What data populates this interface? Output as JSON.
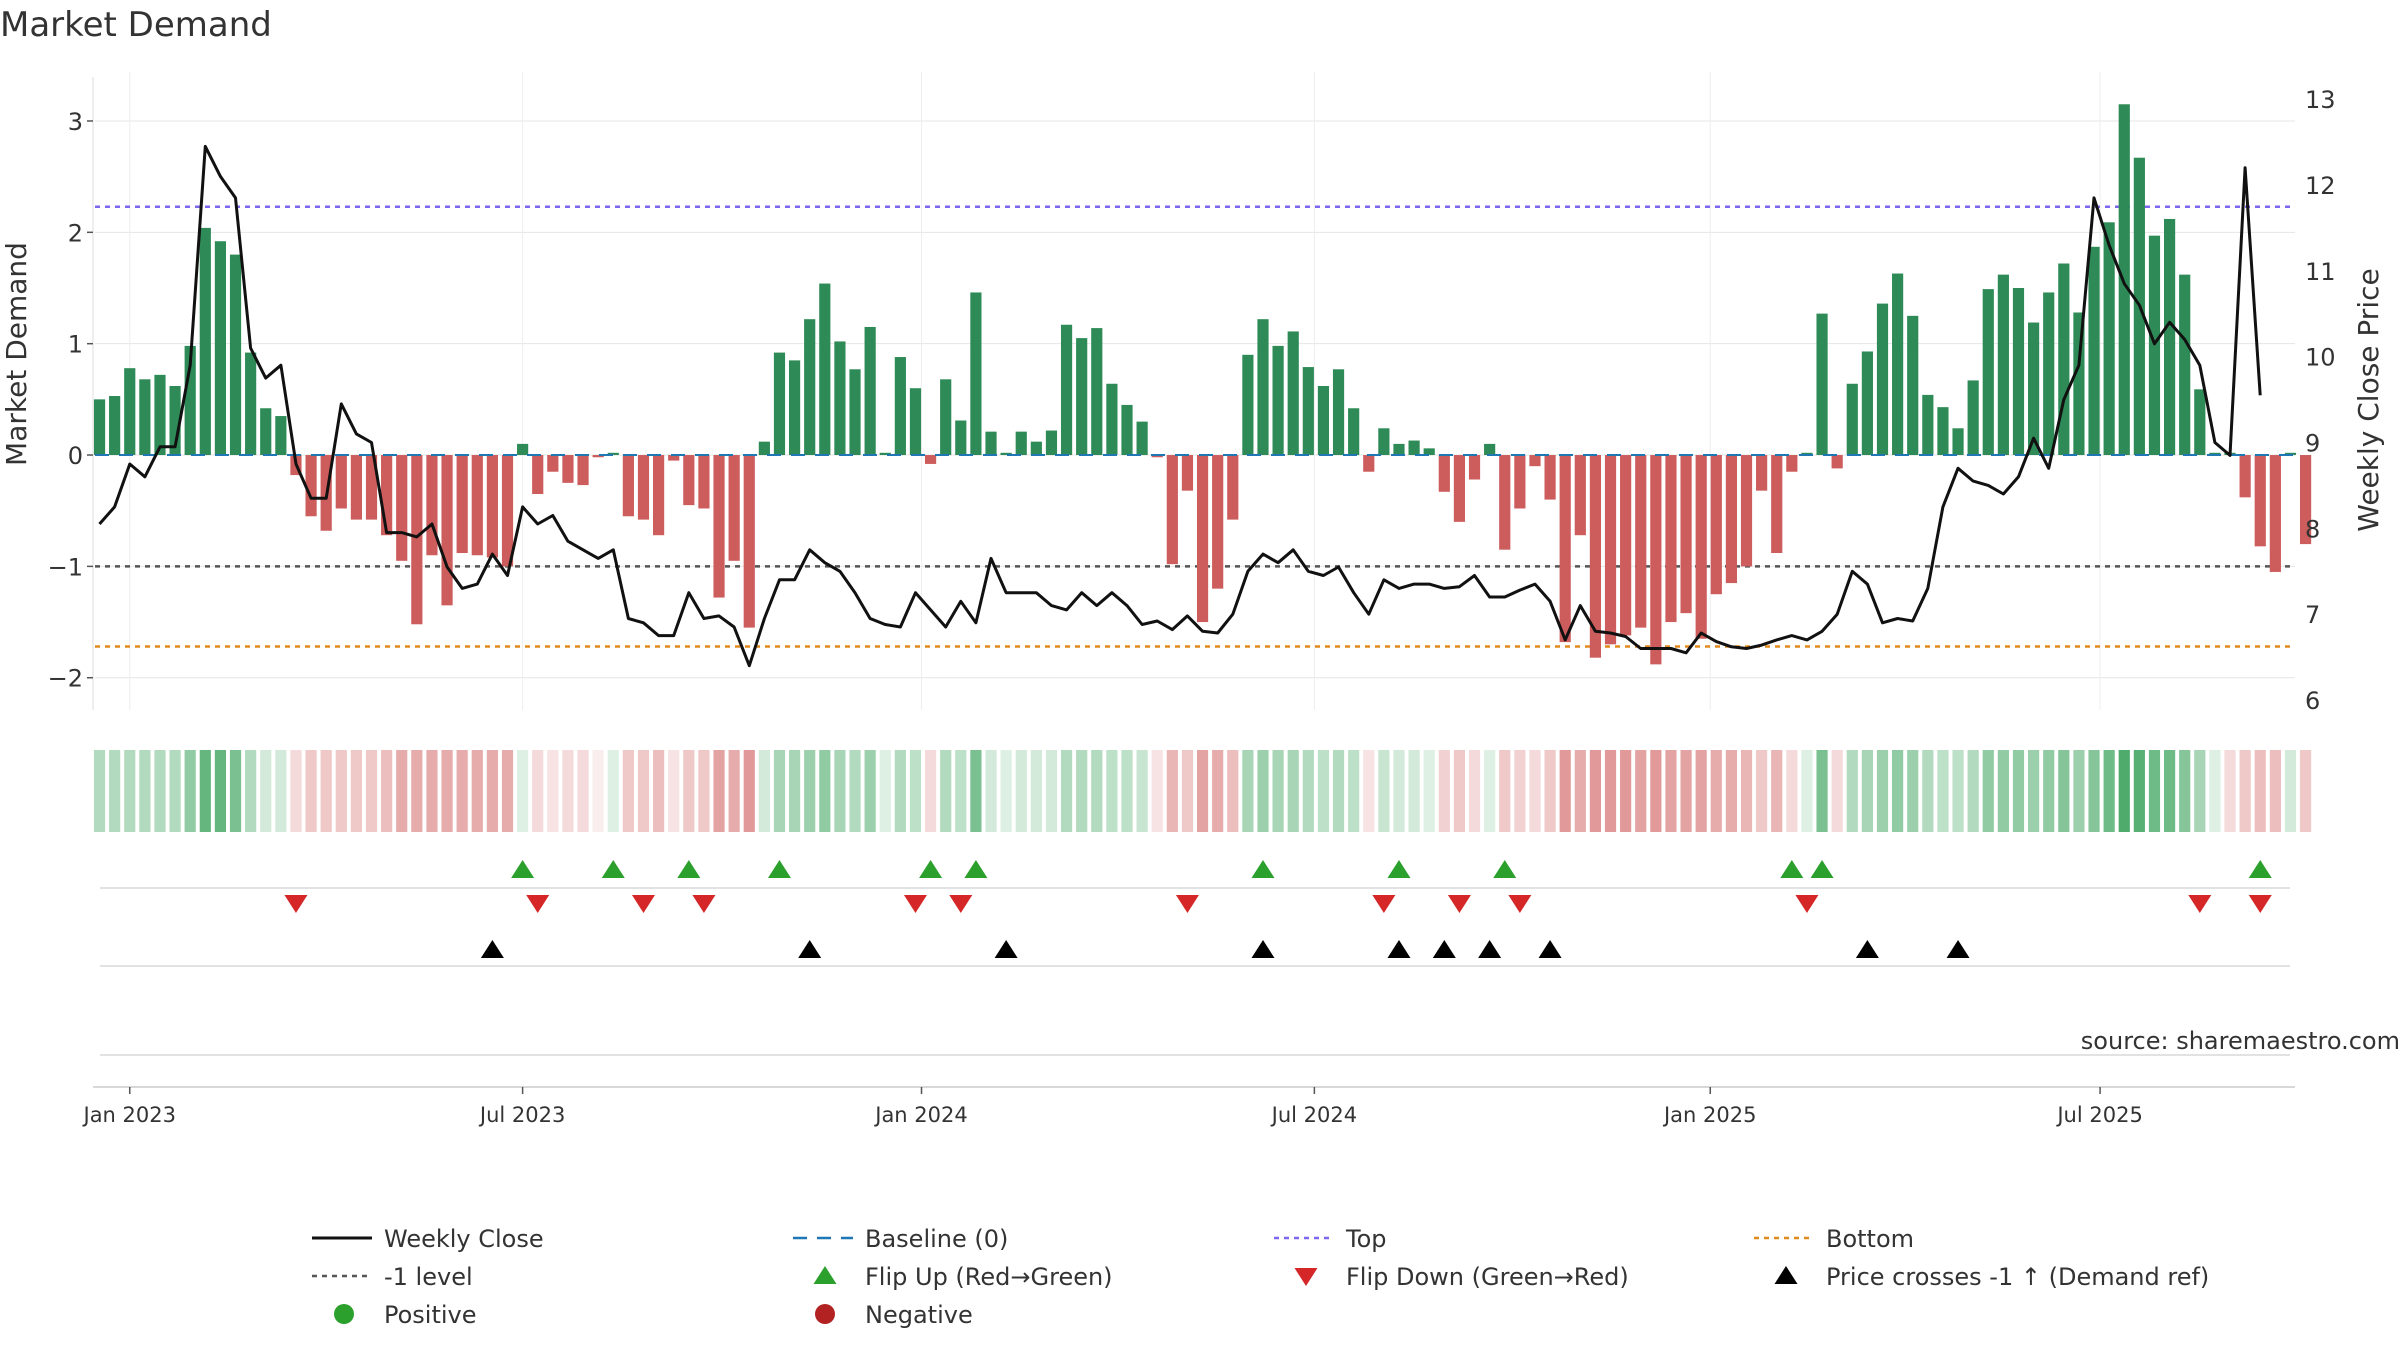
{
  "chart_data": {
    "type": "bar+line",
    "title": "Market Demand",
    "ylabel": "Market Demand",
    "y2label": "Weekly Close Price",
    "ylim": [
      -2.2,
      3.35
    ],
    "y2lim": [
      6.0,
      13.2
    ],
    "yticks": [
      -2,
      -1,
      0,
      1,
      2,
      3
    ],
    "ytick_labels": [
      "−2",
      "−1",
      "0",
      "1",
      "2",
      "3"
    ],
    "y2ticks": [
      6,
      7,
      8,
      9,
      10,
      11,
      12,
      13
    ],
    "y2tick_labels": [
      "6",
      "7",
      "8",
      "9",
      "10",
      "11",
      "12",
      "13"
    ],
    "x_start": "2022-12-19",
    "x_range_weeks": [
      -0.3,
      145.3
    ],
    "xticks": [
      {
        "label": "Jan 2023",
        "week": 2.0
      },
      {
        "label": "Jul 2023",
        "week": 28.0
      },
      {
        "label": "Jan 2024",
        "week": 54.4
      },
      {
        "label": "Jul 2024",
        "week": 80.4
      },
      {
        "label": "Jan 2025",
        "week": 106.6
      },
      {
        "label": "Jul 2025",
        "week": 132.4
      }
    ],
    "reference_lines": {
      "top": 2.23,
      "minus1": -1.0,
      "bottom": -1.72,
      "baseline": 0
    },
    "demand": [
      0.5,
      0.53,
      0.78,
      0.68,
      0.72,
      0.62,
      0.98,
      2.04,
      1.92,
      1.8,
      0.92,
      0.42,
      0.35,
      -0.18,
      -0.55,
      -0.68,
      -0.48,
      -0.58,
      -0.58,
      -0.72,
      -0.95,
      -1.52,
      -0.9,
      -1.35,
      -0.88,
      -0.9,
      -0.92,
      -1.0,
      0.1,
      -0.35,
      -0.15,
      -0.25,
      -0.27,
      -0.02,
      0.02,
      -0.55,
      -0.58,
      -0.72,
      -0.05,
      -0.45,
      -0.48,
      -1.28,
      -0.95,
      -1.55,
      0.12,
      0.92,
      0.85,
      1.22,
      1.54,
      1.02,
      0.77,
      1.15,
      0.02,
      0.88,
      0.6,
      -0.08,
      0.68,
      0.31,
      1.46,
      0.21,
      0.02,
      0.21,
      0.12,
      0.22,
      1.17,
      1.05,
      1.14,
      0.64,
      0.45,
      0.3,
      -0.02,
      -0.98,
      -0.32,
      -1.5,
      -1.2,
      -0.58,
      0.9,
      1.22,
      0.98,
      1.11,
      0.79,
      0.62,
      0.77,
      0.42,
      -0.15,
      0.24,
      0.1,
      0.13,
      0.06,
      -0.33,
      -0.6,
      -0.22,
      0.1,
      -0.85,
      -0.48,
      -0.1,
      -0.4,
      -1.68,
      -0.72,
      -1.82,
      -1.7,
      -1.62,
      -1.55,
      -1.88,
      -1.5,
      -1.42,
      -1.65,
      -1.25,
      -1.15,
      -1.0,
      -0.32,
      -0.88,
      -0.15,
      0.02,
      1.27,
      -0.12,
      0.64,
      0.93,
      1.36,
      1.63,
      1.25,
      0.54,
      0.43,
      0.24,
      0.67,
      1.49,
      1.62,
      1.5,
      1.19,
      1.46,
      1.72,
      1.28,
      1.87,
      2.09,
      3.15,
      2.67,
      1.97,
      2.12,
      1.62,
      0.59,
      0.02,
      0.02,
      -0.38,
      -0.82,
      -1.05,
      0.02,
      -0.8
    ],
    "weekly_close": [
      8.05,
      8.25,
      8.75,
      8.6,
      8.95,
      8.95,
      9.9,
      12.45,
      12.1,
      11.85,
      10.1,
      9.75,
      9.9,
      8.75,
      8.35,
      8.35,
      9.45,
      9.1,
      9.0,
      7.95,
      7.95,
      7.9,
      8.05,
      7.55,
      7.3,
      7.35,
      7.7,
      7.45,
      8.25,
      8.05,
      8.15,
      7.85,
      7.75,
      7.65,
      7.75,
      6.95,
      6.9,
      6.75,
      6.75,
      7.25,
      6.95,
      6.98,
      6.85,
      6.4,
      6.95,
      7.4,
      7.4,
      7.75,
      7.6,
      7.5,
      7.25,
      6.95,
      6.88,
      6.85,
      7.25,
      7.05,
      6.85,
      7.15,
      6.9,
      7.65,
      7.25,
      7.25,
      7.25,
      7.1,
      7.05,
      7.25,
      7.1,
      7.25,
      7.1,
      6.88,
      6.92,
      6.82,
      6.98,
      6.8,
      6.78,
      7.0,
      7.5,
      7.7,
      7.6,
      7.75,
      7.5,
      7.45,
      7.55,
      7.25,
      7.0,
      7.4,
      7.3,
      7.35,
      7.35,
      7.3,
      7.32,
      7.45,
      7.2,
      7.2,
      7.28,
      7.35,
      7.15,
      6.7,
      7.1,
      6.8,
      6.78,
      6.74,
      6.6,
      6.6,
      6.6,
      6.55,
      6.78,
      6.68,
      6.62,
      6.6,
      6.64,
      6.7,
      6.75,
      6.7,
      6.8,
      7.0,
      7.5,
      7.35,
      6.9,
      6.95,
      6.92,
      7.3,
      8.25,
      8.7,
      8.55,
      8.5,
      8.4,
      8.6,
      9.05,
      8.7,
      9.5,
      9.9,
      11.85,
      11.3,
      10.85,
      10.6,
      10.15,
      10.4,
      10.2,
      9.9,
      9.0,
      8.85,
      12.2,
      9.55
    ],
    "strip_intensity": [
      0.35,
      0.35,
      0.35,
      0.35,
      0.35,
      0.35,
      0.5,
      0.7,
      0.7,
      0.6,
      0.35,
      0.2,
      0.2,
      -0.2,
      -0.3,
      -0.3,
      -0.3,
      -0.3,
      -0.3,
      -0.35,
      -0.45,
      -0.45,
      -0.45,
      -0.45,
      -0.45,
      -0.45,
      -0.45,
      -0.45,
      0.15,
      -0.2,
      -0.15,
      -0.2,
      -0.2,
      -0.1,
      0.15,
      -0.3,
      -0.3,
      -0.35,
      -0.15,
      -0.3,
      -0.3,
      -0.5,
      -0.45,
      -0.55,
      0.2,
      0.4,
      0.4,
      0.45,
      0.5,
      0.4,
      0.35,
      0.45,
      0.15,
      0.35,
      0.3,
      -0.2,
      0.35,
      0.3,
      0.6,
      0.2,
      0.15,
      0.2,
      0.2,
      0.2,
      0.35,
      0.35,
      0.35,
      0.3,
      0.3,
      0.25,
      -0.15,
      -0.4,
      -0.3,
      -0.5,
      -0.45,
      -0.35,
      0.4,
      0.45,
      0.4,
      0.4,
      0.35,
      0.3,
      0.35,
      0.3,
      -0.15,
      0.25,
      0.2,
      0.2,
      0.15,
      -0.25,
      -0.3,
      -0.2,
      0.15,
      -0.3,
      -0.25,
      -0.2,
      -0.3,
      -0.55,
      -0.45,
      -0.55,
      -0.55,
      -0.55,
      -0.5,
      -0.55,
      -0.5,
      -0.5,
      -0.5,
      -0.45,
      -0.45,
      -0.4,
      -0.3,
      -0.4,
      -0.2,
      0.15,
      0.6,
      -0.2,
      0.35,
      0.4,
      0.45,
      0.5,
      0.45,
      0.35,
      0.3,
      0.3,
      0.35,
      0.5,
      0.5,
      0.5,
      0.45,
      0.5,
      0.55,
      0.45,
      0.55,
      0.65,
      0.8,
      0.75,
      0.65,
      0.65,
      0.55,
      0.4,
      0.15,
      -0.2,
      -0.3,
      -0.35,
      -0.35,
      0.2,
      -0.3
    ],
    "flip_up_weeks": [
      28,
      34,
      39,
      45,
      55,
      58,
      77,
      86,
      93,
      112,
      114,
      143
    ],
    "flip_down_weeks": [
      13,
      29,
      36,
      40,
      54,
      57,
      72,
      85,
      90,
      94,
      113,
      139,
      143
    ],
    "price_cross_up_weeks": [
      26,
      47,
      60,
      77,
      86,
      89,
      92,
      96,
      117,
      123
    ],
    "source": "source: sharemaestro.com",
    "legend": [
      {
        "label": "Weekly Close",
        "style": "line-solid",
        "color": "#111111"
      },
      {
        "label": "Baseline (0)",
        "style": "line-dash",
        "color": "#1f77b4"
      },
      {
        "label": "Top",
        "style": "line-dot",
        "color": "#7b68ee"
      },
      {
        "label": "Bottom",
        "style": "line-dot",
        "color": "#e08a1e"
      },
      {
        "label": "-1 level",
        "style": "line-dot",
        "color": "#555555"
      },
      {
        "label": "Flip Up (Red→Green)",
        "style": "tri-up",
        "color": "#2ca02c"
      },
      {
        "label": "Flip Down (Green→Red)",
        "style": "tri-down",
        "color": "#d62728"
      },
      {
        "label": "Price crosses -1 ↑ (Demand ref)",
        "style": "tri-up",
        "color": "#000000"
      },
      {
        "label": "Positive",
        "style": "dot",
        "color": "#2ca02c"
      },
      {
        "label": "Negative",
        "style": "dot",
        "color": "#b22222"
      }
    ],
    "colors": {
      "positive_bar": "#2e8b57",
      "negative_bar": "#cd5c5c",
      "close_line": "#111111",
      "top_line": "#7b68ee",
      "bottom_line": "#e08a1e",
      "minus1_line": "#555555",
      "baseline": "#1f77b4",
      "flip_up": "#2ca02c",
      "flip_down": "#d62728",
      "cross_up": "#000000"
    }
  }
}
